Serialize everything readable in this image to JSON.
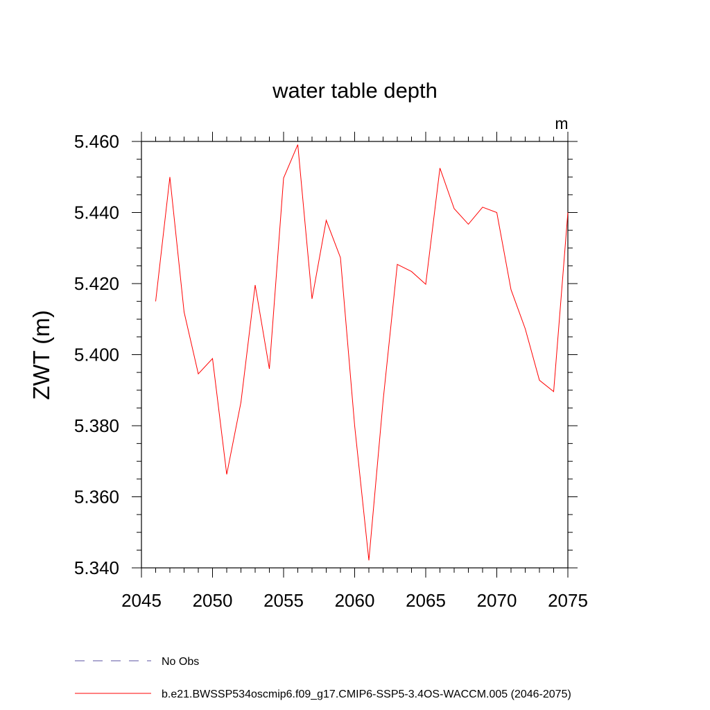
{
  "chart_data": {
    "type": "line",
    "title": "water table depth",
    "units_label": "m",
    "xlabel": "",
    "ylabel": "ZWT  (m)",
    "xlim": [
      2045,
      2075
    ],
    "ylim": [
      5.34,
      5.46
    ],
    "x_ticks": [
      2045,
      2050,
      2055,
      2060,
      2065,
      2070,
      2075
    ],
    "x_tick_labels": [
      "2045",
      "2050",
      "2055",
      "2060",
      "2065",
      "2070",
      "2075"
    ],
    "y_ticks": [
      5.34,
      5.36,
      5.38,
      5.4,
      5.42,
      5.44,
      5.46
    ],
    "y_tick_labels": [
      "5.340",
      "5.360",
      "5.380",
      "5.400",
      "5.420",
      "5.440",
      "5.460"
    ],
    "series": [
      {
        "name": "b.e21.BWSSP534oscmip6.f09_g17.CMIP6-SSP5-3.4OS-WACCM.005 (2046-2075)",
        "color": "#ff0000",
        "x": [
          2046,
          2047,
          2048,
          2049,
          2050,
          2051,
          2052,
          2053,
          2054,
          2055,
          2056,
          2057,
          2058,
          2059,
          2060,
          2061,
          2062,
          2063,
          2064,
          2065,
          2066,
          2067,
          2068,
          2069,
          2070,
          2071,
          2072,
          2073,
          2074,
          2075
        ],
        "y": [
          5.415,
          5.45,
          5.412,
          5.3946,
          5.3989,
          5.3663,
          5.3866,
          5.4196,
          5.396,
          5.4497,
          5.4591,
          5.4157,
          5.4378,
          5.4273,
          5.38,
          5.3421,
          5.387,
          5.4254,
          5.4234,
          5.4198,
          5.4525,
          5.4411,
          5.4367,
          5.4415,
          5.44,
          5.4183,
          5.4073,
          5.3928,
          5.3896,
          5.44
        ]
      }
    ],
    "legend": {
      "placement": "bottom-left",
      "entries": [
        {
          "label": "No Obs",
          "color": "#5a50a0",
          "dash": "dashed"
        },
        {
          "label": "b.e21.BWSSP534oscmip6.f09_g17.CMIP6-SSP5-3.4OS-WACCM.005 (2046-2075)",
          "color": "#ff0000",
          "dash": "solid"
        }
      ]
    }
  }
}
